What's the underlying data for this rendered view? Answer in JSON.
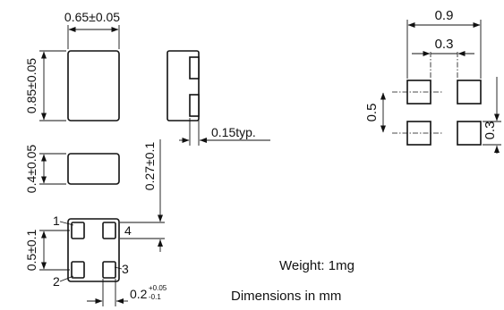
{
  "dimensions": {
    "top_width": "0.65±0.05",
    "side_height": "0.85±0.05",
    "front_height": "0.4±0.05",
    "terminal_thickness": "0.15typ.",
    "pad_offset": "0.27±0.1",
    "pad_pitch": "0.5±0.1",
    "pad_width": {
      "base": "0.2",
      "tol_plus": "+0.05",
      "tol_minus": "-0.1"
    }
  },
  "land_pattern": {
    "overall_width": "0.9",
    "inner_gap": "0.3",
    "pitch": "0.5",
    "pad_size": "0.3"
  },
  "pin_labels": [
    "1",
    "2",
    "3",
    "4"
  ],
  "notes": {
    "weight": "Weight: 1mg",
    "units": "Dimensions in mm"
  }
}
